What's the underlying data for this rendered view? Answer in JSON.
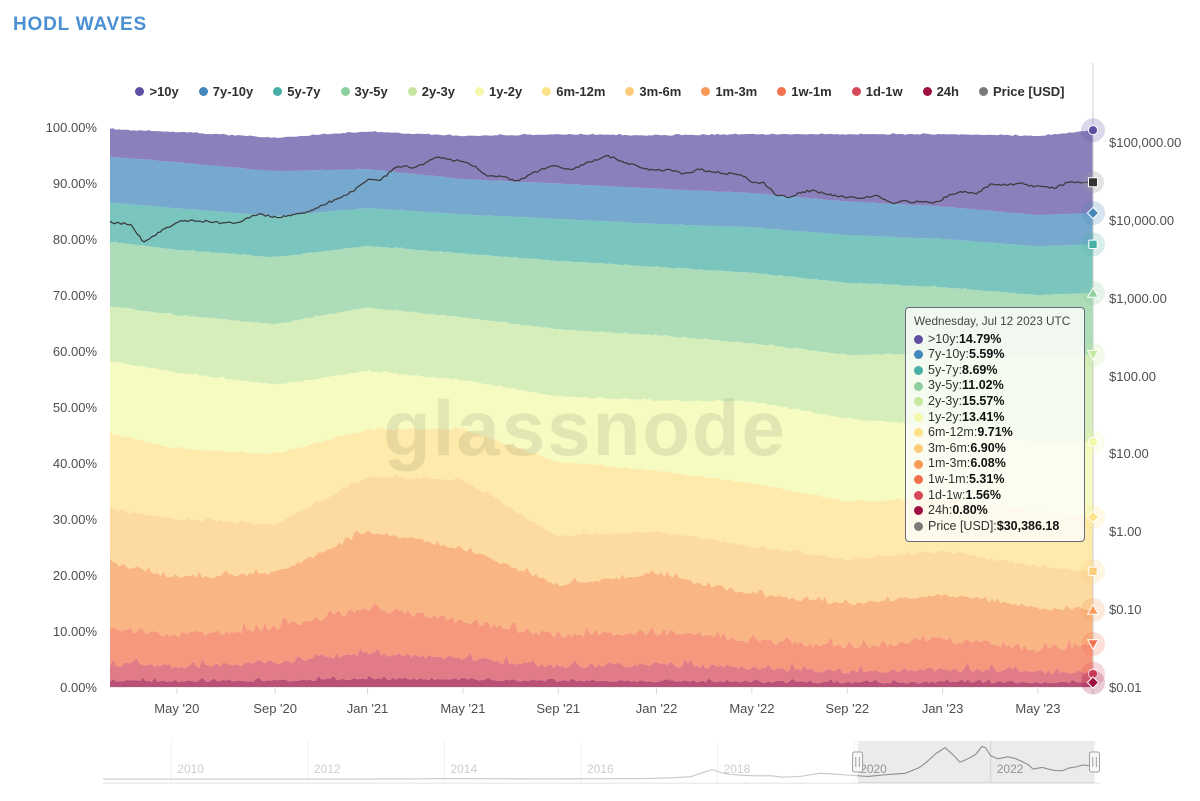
{
  "page_title": "HODL WAVES",
  "accent_color": "#4a90d2",
  "watermark": "glassnode",
  "legend": {
    "items": [
      {
        "label": ">10y",
        "color": "#5e4fa2",
        "marker": "circle"
      },
      {
        "label": "7y-10y",
        "color": "#4286bb",
        "marker": "diamond"
      },
      {
        "label": "5y-7y",
        "color": "#47b0a6",
        "marker": "square"
      },
      {
        "label": "3y-5y",
        "color": "#8ecf9e",
        "marker": "triangle"
      },
      {
        "label": "2y-3y",
        "color": "#c5e79f",
        "marker": "triangle-down"
      },
      {
        "label": "1y-2y",
        "color": "#f3f9ab",
        "marker": "circle"
      },
      {
        "label": "6m-12m",
        "color": "#fee289",
        "marker": "diamond"
      },
      {
        "label": "3m-6m",
        "color": "#fccc7b",
        "marker": "square"
      },
      {
        "label": "1m-3m",
        "color": "#f89955",
        "marker": "triangle"
      },
      {
        "label": "1w-1m",
        "color": "#f2704b",
        "marker": "triangle-down"
      },
      {
        "label": "1d-1w",
        "color": "#d5485a",
        "marker": "circle"
      },
      {
        "label": "24h",
        "color": "#9e0f42",
        "marker": "diamond"
      },
      {
        "label": "Price [USD]",
        "color": "#7a7a7a",
        "marker": "square"
      }
    ]
  },
  "left_axis": {
    "ticks": [
      {
        "label": "100.00%",
        "value": 100
      },
      {
        "label": "90.00%",
        "value": 90
      },
      {
        "label": "80.00%",
        "value": 80
      },
      {
        "label": "70.00%",
        "value": 70
      },
      {
        "label": "60.00%",
        "value": 60
      },
      {
        "label": "50.00%",
        "value": 50
      },
      {
        "label": "40.00%",
        "value": 40
      },
      {
        "label": "30.00%",
        "value": 30
      },
      {
        "label": "20.00%",
        "value": 20
      },
      {
        "label": "10.00%",
        "value": 10
      },
      {
        "label": "0.00%",
        "value": 0
      }
    ]
  },
  "right_axis": {
    "ticks": [
      {
        "label": "$100,000.00",
        "value": 100000
      },
      {
        "label": "$10,000.00",
        "value": 10000
      },
      {
        "label": "$1,000.00",
        "value": 1000
      },
      {
        "label": "$100.00",
        "value": 100
      },
      {
        "label": "$10.00",
        "value": 10
      },
      {
        "label": "$1.00",
        "value": 1
      },
      {
        "label": "$0.10",
        "value": 0.1
      },
      {
        "label": "$0.01",
        "value": 0.01
      }
    ]
  },
  "x_axis": {
    "ticks": [
      {
        "label": "May '20",
        "f": 0.068
      },
      {
        "label": "Sep '20",
        "f": 0.168
      },
      {
        "label": "Jan '21",
        "f": 0.262
      },
      {
        "label": "May '21",
        "f": 0.359
      },
      {
        "label": "Sep '21",
        "f": 0.456
      },
      {
        "label": "Jan '22",
        "f": 0.556
      },
      {
        "label": "May '22",
        "f": 0.653
      },
      {
        "label": "Sep '22",
        "f": 0.75
      },
      {
        "label": "Jan '23",
        "f": 0.847
      },
      {
        "label": "May '23",
        "f": 0.944
      }
    ]
  },
  "tooltip": {
    "date": "Wednesday, Jul 12 2023 UTC",
    "rows": [
      {
        "label": ">10y",
        "value": "14.79%",
        "color": "#5e4fa2"
      },
      {
        "label": "7y-10y",
        "value": "5.59%",
        "color": "#4286bb"
      },
      {
        "label": "5y-7y",
        "value": "8.69%",
        "color": "#47b0a6"
      },
      {
        "label": "3y-5y",
        "value": "11.02%",
        "color": "#8ecf9e"
      },
      {
        "label": "2y-3y",
        "value": "15.57%",
        "color": "#c5e79f"
      },
      {
        "label": "1y-2y",
        "value": "13.41%",
        "color": "#f3f9ab"
      },
      {
        "label": "6m-12m",
        "value": "9.71%",
        "color": "#fee289"
      },
      {
        "label": "3m-6m",
        "value": "6.90%",
        "color": "#fccc7b"
      },
      {
        "label": "1m-3m",
        "value": "6.08%",
        "color": "#f89955"
      },
      {
        "label": "1w-1m",
        "value": "5.31%",
        "color": "#f2704b"
      },
      {
        "label": "1d-1w",
        "value": "1.56%",
        "color": "#d5485a"
      },
      {
        "label": "24h",
        "value": "0.80%",
        "color": "#9e0f42"
      },
      {
        "label": "Price [USD]",
        "value": "$30,386.18",
        "color": "#7a7a7a"
      }
    ]
  },
  "chart_data": {
    "type": "area",
    "title": "HODL WAVES",
    "stacking": "percent",
    "x_range": "Feb 2020 - Jul 2023 (x stored as fraction of visible range)",
    "x": [
      0,
      0.068,
      0.168,
      0.262,
      0.359,
      0.456,
      0.556,
      0.653,
      0.75,
      0.847,
      0.944,
      1
    ],
    "x_tick_labels": [
      "May '20",
      "Sep '20",
      "Jan '21",
      "May '21",
      "Sep '21",
      "Jan '22",
      "May '22",
      "Sep '22",
      "Jan '23",
      "May '23"
    ],
    "y_left": {
      "unit": "% of supply",
      "range": [
        0,
        100
      ]
    },
    "y_right": {
      "type": "log",
      "unit": "USD",
      "range": [
        0.01,
        100000
      ]
    },
    "legend_position": "top",
    "series": [
      {
        "name": ">10y",
        "color": "#5e4fa2",
        "values": [
          4.9,
          5.4,
          6.0,
          6.7,
          7.7,
          8.8,
          9.5,
          10.5,
          12.0,
          12.9,
          14.1,
          14.79
        ]
      },
      {
        "name": "7y-10y",
        "color": "#4286bb",
        "values": [
          8.2,
          8.2,
          8.0,
          7.0,
          6.3,
          6.3,
          6.3,
          6.1,
          6.0,
          5.8,
          5.6,
          5.59
        ]
      },
      {
        "name": "5y-7y",
        "color": "#47b0a6",
        "values": [
          7.0,
          7.4,
          7.4,
          6.7,
          7.0,
          7.5,
          7.7,
          8.1,
          8.5,
          8.6,
          8.7,
          8.69
        ]
      },
      {
        "name": "3y-5y",
        "color": "#8ecf9e",
        "values": [
          11.5,
          11.7,
          11.9,
          11.0,
          11.4,
          12.2,
          12.2,
          12.6,
          12.9,
          11.9,
          11.1,
          11.02
        ]
      },
      {
        "name": "2y-3y",
        "color": "#c5e79f",
        "values": [
          9.8,
          10.2,
          10.8,
          11.4,
          11.2,
          12.0,
          11.6,
          10.4,
          11.4,
          13.0,
          15.2,
          15.57
        ]
      },
      {
        "name": "1y-2y",
        "color": "#f3f9ab",
        "values": [
          13.0,
          13.6,
          12.4,
          10.4,
          8.8,
          11.6,
          12.6,
          14.6,
          14.8,
          12.8,
          12.2,
          13.41
        ]
      },
      {
        "name": "6m-12m",
        "color": "#fee289",
        "values": [
          13.5,
          12.6,
          12.6,
          8.4,
          9.0,
          13.4,
          10.8,
          11.2,
          10.3,
          9.5,
          10.0,
          9.71
        ]
      },
      {
        "name": "3m-6m",
        "color": "#fccc7b",
        "values": [
          9.5,
          10.5,
          8.6,
          9.8,
          12.2,
          8.6,
          7.6,
          8.6,
          8.0,
          7.6,
          7.4,
          6.9
        ]
      },
      {
        "name": "1m-3m",
        "color": "#f89955",
        "values": [
          11.5,
          10.2,
          9.8,
          13.5,
          13.0,
          9.0,
          10.3,
          8.2,
          7.6,
          8.0,
          7.2,
          6.08
        ]
      },
      {
        "name": "1w-1m",
        "color": "#f2704b",
        "values": [
          6.5,
          5.6,
          6.2,
          8.2,
          6.6,
          5.6,
          5.8,
          5.0,
          4.4,
          5.4,
          4.1,
          5.31
        ]
      },
      {
        "name": "1d-1w",
        "color": "#d5485a",
        "values": [
          3.0,
          2.6,
          3.2,
          4.6,
          3.8,
          2.6,
          3.0,
          2.4,
          2.0,
          2.3,
          1.9,
          1.56
        ]
      },
      {
        "name": "24h",
        "color": "#9e0f42",
        "values": [
          1.2,
          1.1,
          1.2,
          1.5,
          1.4,
          1.1,
          1.1,
          1.0,
          0.8,
          0.9,
          0.9,
          0.8
        ]
      }
    ],
    "price_series": {
      "name": "Price [USD]",
      "line_color": "#3a3a3a",
      "last_value": 30386.18,
      "points": [
        [
          0,
          9300
        ],
        [
          0.02,
          8800
        ],
        [
          0.034,
          5200
        ],
        [
          0.05,
          6900
        ],
        [
          0.068,
          9400
        ],
        [
          0.09,
          9800
        ],
        [
          0.11,
          9150
        ],
        [
          0.13,
          9250
        ],
        [
          0.15,
          11800
        ],
        [
          0.168,
          10750
        ],
        [
          0.185,
          11400
        ],
        [
          0.205,
          13100
        ],
        [
          0.22,
          16200
        ],
        [
          0.235,
          19500
        ],
        [
          0.248,
          23800
        ],
        [
          0.262,
          33000
        ],
        [
          0.275,
          32000
        ],
        [
          0.29,
          46500
        ],
        [
          0.3,
          49500
        ],
        [
          0.31,
          46000
        ],
        [
          0.325,
          57500
        ],
        [
          0.335,
          63500
        ],
        [
          0.345,
          58500
        ],
        [
          0.359,
          56500
        ],
        [
          0.37,
          49000
        ],
        [
          0.385,
          36500
        ],
        [
          0.4,
          35500
        ],
        [
          0.415,
          31500
        ],
        [
          0.43,
          39500
        ],
        [
          0.445,
          47500
        ],
        [
          0.456,
          48500
        ],
        [
          0.47,
          43500
        ],
        [
          0.485,
          54500
        ],
        [
          0.5,
          61500
        ],
        [
          0.507,
          66000
        ],
        [
          0.52,
          57500
        ],
        [
          0.535,
          49000
        ],
        [
          0.556,
          43000
        ],
        [
          0.57,
          44200
        ],
        [
          0.585,
          38800
        ],
        [
          0.6,
          44500
        ],
        [
          0.615,
          40800
        ],
        [
          0.63,
          39200
        ],
        [
          0.645,
          36000
        ],
        [
          0.653,
          30000
        ],
        [
          0.665,
          29700
        ],
        [
          0.678,
          20800
        ],
        [
          0.69,
          19300
        ],
        [
          0.703,
          22600
        ],
        [
          0.716,
          23900
        ],
        [
          0.728,
          21400
        ],
        [
          0.74,
          20100
        ],
        [
          0.75,
          19600
        ],
        [
          0.765,
          18900
        ],
        [
          0.78,
          20400
        ],
        [
          0.795,
          16600
        ],
        [
          0.81,
          17200
        ],
        [
          0.825,
          16900
        ],
        [
          0.84,
          16700
        ],
        [
          0.855,
          21100
        ],
        [
          0.87,
          23300
        ],
        [
          0.882,
          21900
        ],
        [
          0.895,
          28200
        ],
        [
          0.905,
          27600
        ],
        [
          0.915,
          28500
        ],
        [
          0.925,
          29600
        ],
        [
          0.938,
          27300
        ],
        [
          0.95,
          26600
        ],
        [
          0.962,
          25800
        ],
        [
          0.975,
          30600
        ],
        [
          0.985,
          30100
        ],
        [
          1,
          30386
        ]
      ]
    }
  },
  "navigator": {
    "years": [
      2010,
      2012,
      2014,
      2016,
      2018,
      2020,
      2022
    ],
    "range_years": [
      2009,
      2023.6
    ],
    "selection": [
      2020.05,
      2023.52
    ],
    "max_usd": 69000,
    "price_curve": [
      [
        2009.0,
        0
      ],
      [
        2010.0,
        0.1
      ],
      [
        2010.5,
        0.2
      ],
      [
        2011.0,
        1
      ],
      [
        2011.45,
        30
      ],
      [
        2011.6,
        5
      ],
      [
        2012.0,
        5
      ],
      [
        2012.5,
        7
      ],
      [
        2013.0,
        13
      ],
      [
        2013.3,
        120
      ],
      [
        2013.6,
        100
      ],
      [
        2013.92,
        1150
      ],
      [
        2014.1,
        800
      ],
      [
        2014.5,
        600
      ],
      [
        2014.9,
        320
      ],
      [
        2015.2,
        230
      ],
      [
        2015.7,
        280
      ],
      [
        2016.0,
        430
      ],
      [
        2016.5,
        660
      ],
      [
        2017.0,
        1000
      ],
      [
        2017.3,
        2500
      ],
      [
        2017.6,
        4500
      ],
      [
        2017.92,
        19000
      ],
      [
        2018.1,
        11000
      ],
      [
        2018.3,
        8000
      ],
      [
        2018.55,
        6500
      ],
      [
        2018.8,
        6400
      ],
      [
        2018.95,
        3700
      ],
      [
        2019.2,
        5000
      ],
      [
        2019.5,
        11500
      ],
      [
        2019.75,
        9500
      ],
      [
        2020.0,
        7200
      ],
      [
        2020.2,
        5300
      ],
      [
        2020.5,
        9200
      ],
      [
        2020.75,
        11500
      ],
      [
        2020.95,
        23000
      ],
      [
        2021.05,
        33000
      ],
      [
        2021.2,
        52000
      ],
      [
        2021.28,
        59000
      ],
      [
        2021.33,
        63500
      ],
      [
        2021.45,
        49000
      ],
      [
        2021.55,
        34000
      ],
      [
        2021.65,
        40000
      ],
      [
        2021.78,
        50000
      ],
      [
        2021.87,
        66000
      ],
      [
        2021.92,
        64000
      ],
      [
        2022.0,
        47000
      ],
      [
        2022.1,
        41000
      ],
      [
        2022.25,
        45000
      ],
      [
        2022.35,
        42000
      ],
      [
        2022.45,
        36000
      ],
      [
        2022.55,
        29000
      ],
      [
        2022.62,
        20000
      ],
      [
        2022.75,
        23500
      ],
      [
        2022.85,
        19800
      ],
      [
        2022.95,
        17000
      ],
      [
        2023.05,
        16800
      ],
      [
        2023.15,
        22500
      ],
      [
        2023.25,
        24500
      ],
      [
        2023.35,
        28500
      ],
      [
        2023.45,
        27000
      ],
      [
        2023.52,
        30386
      ]
    ]
  }
}
